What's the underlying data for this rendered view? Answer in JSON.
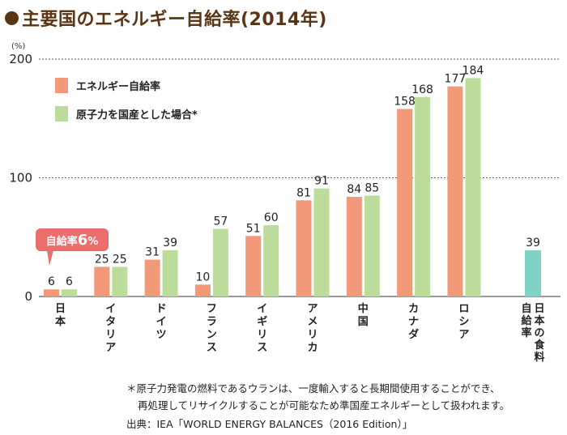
{
  "title": "●主要国のエネルギー自給率(2014年)",
  "title_text": "主要国のエネルギー自給率(2014年)",
  "colors": {
    "title": "#5a3514",
    "self_sufficiency": "#f2997a",
    "with_nuclear": "#bcdc9b",
    "japan_food": "#80d3c4",
    "callout": "#ec6d6d"
  },
  "chart_data": {
    "type": "bar",
    "ylabel": "(%)",
    "ylim": [
      0,
      200
    ],
    "yticks": [
      0,
      100,
      200
    ],
    "grid": true,
    "legend_position": "top-left",
    "categories": [
      "日本",
      "イタリア",
      "ドイツ",
      "フランス",
      "イギリス",
      "アメリカ",
      "中国",
      "カナダ",
      "ロシア"
    ],
    "series": [
      {
        "name": "エネルギー自給率",
        "values": [
          6,
          25,
          31,
          10,
          51,
          81,
          84,
          158,
          177
        ]
      },
      {
        "name": "原子力を国産とした場合*",
        "values": [
          6,
          25,
          39,
          57,
          60,
          91,
          85,
          168,
          184
        ]
      }
    ],
    "extra_bar": {
      "category": "日本の食料自給率",
      "label_lines": [
        "日本の食料",
        "自給率"
      ],
      "value": 39
    },
    "callout": {
      "prefix": "自給率",
      "value": "6",
      "unit": "%"
    }
  },
  "footnotes": [
    "＊原子力発電の燃料であるウランは、一度輸入すると長期間使用することができ、",
    "再処理してリサイクルすることが可能なため準国産エネルギーとして扱われます。",
    "出典：IEA「WORLD ENERGY BALANCES（2016 Edition）」"
  ]
}
